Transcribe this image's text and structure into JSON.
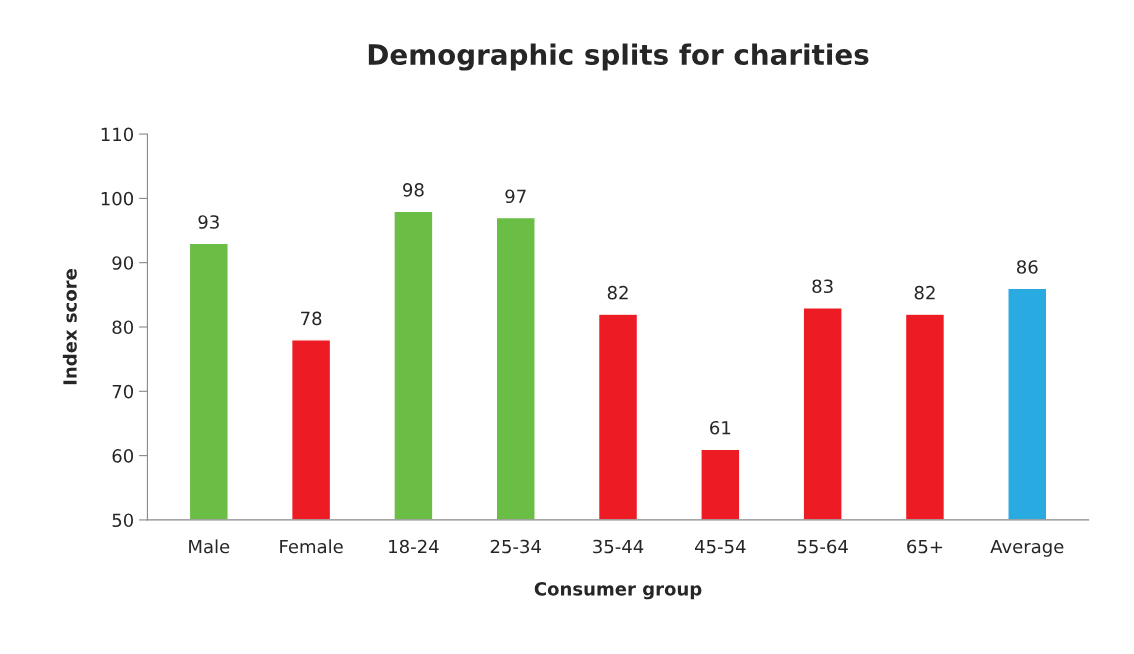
{
  "chart_data": {
    "type": "bar",
    "title": "Demographic splits for charities",
    "xlabel": "Consumer group",
    "ylabel": "Index score",
    "categories": [
      "Male",
      "Female",
      "18-24",
      "25-34",
      "35-44",
      "45-54",
      "55-64",
      "65+",
      "Average"
    ],
    "values": [
      93,
      78,
      98,
      97,
      82,
      61,
      83,
      82,
      86
    ],
    "colors": [
      "#6abd45",
      "#ed1c24",
      "#6abd45",
      "#6abd45",
      "#ed1c24",
      "#ed1c24",
      "#ed1c24",
      "#ed1c24",
      "#29abe2"
    ],
    "ylim": [
      50,
      110
    ],
    "yticks": [
      50,
      60,
      70,
      80,
      90,
      100,
      110
    ],
    "grid": false,
    "legend": false,
    "data_labels": true
  }
}
